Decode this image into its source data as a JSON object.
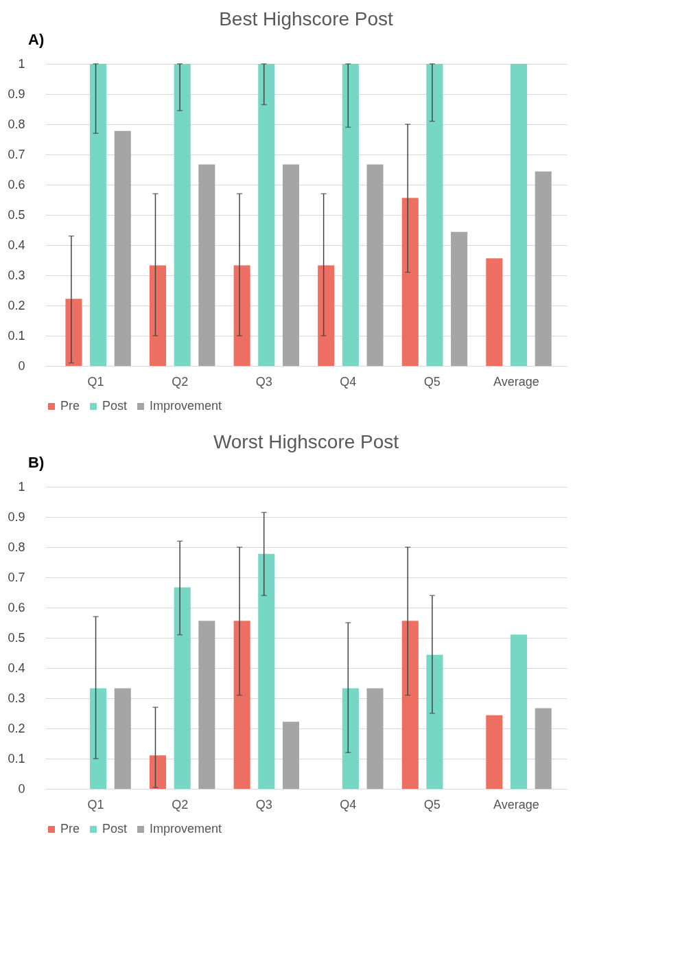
{
  "chart_data": [
    {
      "type": "bar",
      "title": "Best Highscore Post",
      "annotations": [
        "A)"
      ],
      "categories": [
        "Q1",
        "Q2",
        "Q3",
        "Q4",
        "Q5",
        "Average"
      ],
      "ylim": [
        0,
        1
      ],
      "yticks": [
        0,
        0.1,
        0.2,
        0.3,
        0.4,
        0.5,
        0.6,
        0.7,
        0.8,
        0.9,
        1
      ],
      "grid": "y",
      "legend": "bottom",
      "series": [
        {
          "name": "Pre",
          "color": "#ec6f61",
          "values": [
            0.222,
            0.333,
            0.333,
            0.333,
            0.556,
            0.356
          ],
          "errors": [
            [
              0.01,
              0.43
            ],
            [
              0.1,
              0.57
            ],
            [
              0.1,
              0.57
            ],
            [
              0.1,
              0.57
            ],
            [
              0.31,
              0.8
            ],
            null
          ]
        },
        {
          "name": "Post",
          "color": "#76d7c4",
          "values": [
            1,
            1,
            1,
            1,
            1,
            1
          ],
          "errors": [
            [
              0.77,
              1
            ],
            [
              0.845,
              1
            ],
            [
              0.865,
              1
            ],
            [
              0.79,
              1
            ],
            [
              0.81,
              1
            ],
            null
          ]
        },
        {
          "name": "Improvement",
          "color": "#a5a5a5",
          "values": [
            0.778,
            0.667,
            0.667,
            0.667,
            0.444,
            0.644
          ],
          "errors": [
            null,
            null,
            null,
            null,
            null,
            null
          ]
        }
      ]
    },
    {
      "type": "bar",
      "title": "Worst Highscore Post",
      "annotations": [
        "B)"
      ],
      "categories": [
        "Q1",
        "Q2",
        "Q3",
        "Q4",
        "Q5",
        "Average"
      ],
      "ylim": [
        0,
        1
      ],
      "yticks": [
        0,
        0.1,
        0.2,
        0.3,
        0.4,
        0.5,
        0.6,
        0.7,
        0.8,
        0.9,
        1
      ],
      "grid": "y",
      "legend": "bottom",
      "series": [
        {
          "name": "Pre",
          "color": "#ec6f61",
          "values": [
            0,
            0.111,
            0.556,
            0,
            0.556,
            0.244
          ],
          "errors": [
            null,
            [
              0.005,
              0.27
            ],
            [
              0.31,
              0.8
            ],
            null,
            [
              0.31,
              0.8
            ],
            null
          ]
        },
        {
          "name": "Post",
          "color": "#76d7c4",
          "values": [
            0.333,
            0.667,
            0.778,
            0.333,
            0.444,
            0.511
          ],
          "errors": [
            [
              0.1,
              0.57
            ],
            [
              0.51,
              0.82
            ],
            [
              0.64,
              0.915
            ],
            [
              0.12,
              0.55
            ],
            [
              0.25,
              0.64
            ],
            null
          ]
        },
        {
          "name": "Improvement",
          "color": "#a5a5a5",
          "values": [
            0.333,
            0.556,
            0.222,
            0.333,
            0,
            0.267
          ],
          "errors": [
            null,
            null,
            null,
            null,
            null,
            null
          ]
        }
      ]
    }
  ]
}
